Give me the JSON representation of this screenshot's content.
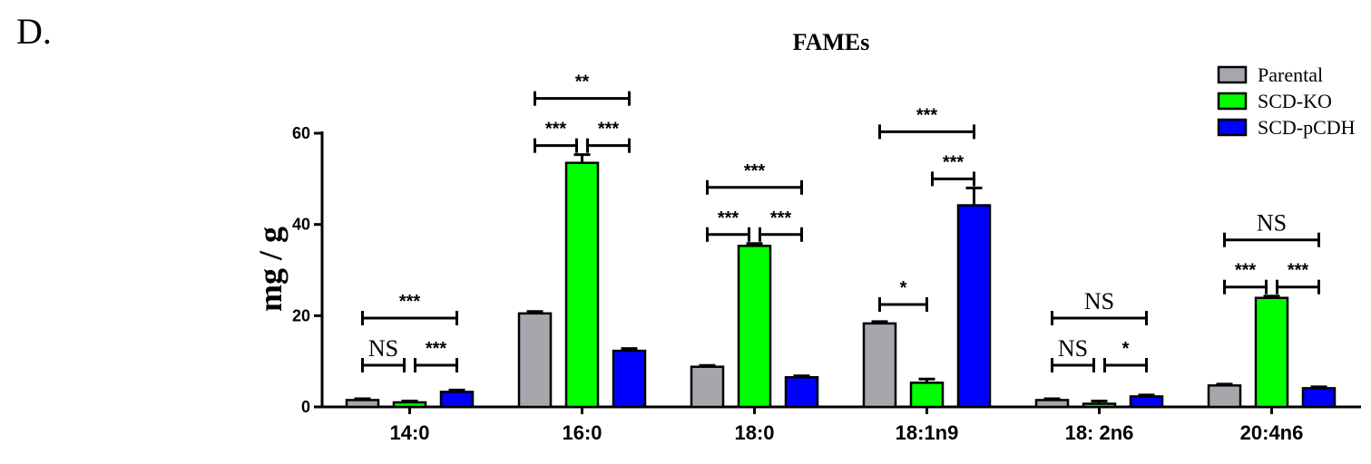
{
  "panel_label": "D.",
  "chart_data": {
    "type": "bar",
    "title": "FAMEs",
    "xlabel": "",
    "ylabel": "mg / g",
    "ylim": [
      0,
      60
    ],
    "yticks": [
      0,
      20,
      40,
      60
    ],
    "grid": false,
    "legend_position": "top-right",
    "categories": [
      "14:0",
      "16:0",
      "18:0",
      "18:1n9",
      "18: 2n6",
      "20:4n6"
    ],
    "series": [
      {
        "name": "Parental",
        "color": "#a6a6ad",
        "values": [
          1.5,
          20.5,
          8.8,
          18.3,
          1.5,
          4.7
        ],
        "errors": [
          0.3,
          0.4,
          0.3,
          0.4,
          0.3,
          0.3
        ]
      },
      {
        "name": "SCD-KO",
        "color": "#00ff00",
        "values": [
          1.0,
          53.5,
          35.3,
          5.3,
          0.7,
          23.9
        ],
        "errors": [
          0.3,
          1.8,
          0.5,
          0.8,
          0.6,
          0.4
        ]
      },
      {
        "name": "SCD-pCDH",
        "color": "#0000ff",
        "values": [
          3.3,
          12.3,
          6.5,
          44.2,
          2.3,
          4.1
        ],
        "errors": [
          0.4,
          0.5,
          0.3,
          3.8,
          0.3,
          0.3
        ]
      }
    ],
    "annotations": [
      {
        "category": 0,
        "from": 0,
        "to": 2,
        "level": 2,
        "label": "***"
      },
      {
        "category": 0,
        "from": 0,
        "to": 1,
        "level": 1,
        "label": "NS"
      },
      {
        "category": 0,
        "from": 1,
        "to": 2,
        "level": 1,
        "label": "***"
      },
      {
        "category": 1,
        "from": 0,
        "to": 2,
        "level": 2,
        "label": "**"
      },
      {
        "category": 1,
        "from": 0,
        "to": 1,
        "level": 1,
        "label": "***"
      },
      {
        "category": 1,
        "from": 1,
        "to": 2,
        "level": 1,
        "label": "***"
      },
      {
        "category": 2,
        "from": 0,
        "to": 2,
        "level": 2,
        "label": "***"
      },
      {
        "category": 2,
        "from": 0,
        "to": 1,
        "level": 1,
        "label": "***"
      },
      {
        "category": 2,
        "from": 1,
        "to": 2,
        "level": 1,
        "label": "***"
      },
      {
        "category": 3,
        "from": 0,
        "to": 2,
        "level": 2,
        "label": "***"
      },
      {
        "category": 3,
        "from": 1,
        "to": 2,
        "level": 1,
        "label": "***"
      },
      {
        "category": 3,
        "from": 0,
        "to": 1,
        "level": 0,
        "label": "*"
      },
      {
        "category": 4,
        "from": 0,
        "to": 2,
        "level": 2,
        "label": "NS"
      },
      {
        "category": 4,
        "from": 0,
        "to": 1,
        "level": 1,
        "label": "NS"
      },
      {
        "category": 4,
        "from": 1,
        "to": 2,
        "level": 1,
        "label": "*"
      },
      {
        "category": 5,
        "from": 0,
        "to": 2,
        "level": 2,
        "label": "NS"
      },
      {
        "category": 5,
        "from": 0,
        "to": 1,
        "level": 1,
        "label": "***"
      },
      {
        "category": 5,
        "from": 1,
        "to": 2,
        "level": 1,
        "label": "***"
      }
    ]
  }
}
